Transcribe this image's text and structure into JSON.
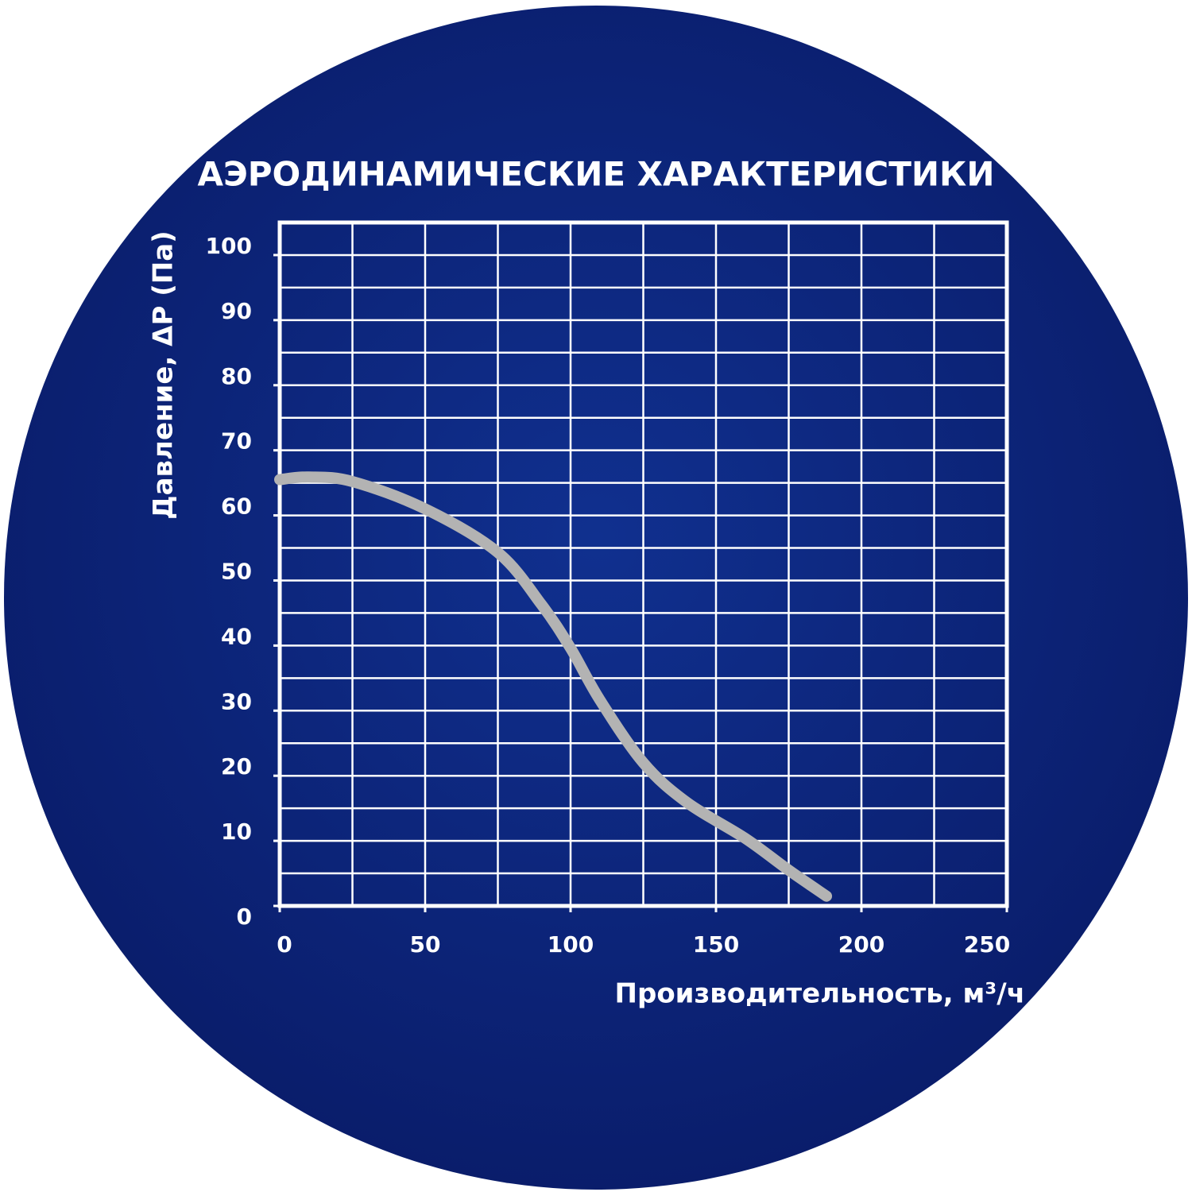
{
  "chart_data": {
    "type": "line",
    "title": "АЭРОДИНАМИЧЕСКИЕ ХАРАКТЕРИСТИКИ",
    "x_label": "Производительность, м³/ч",
    "y_label": "Давление, ΔP (Па)",
    "x": [
      0,
      10,
      25,
      50,
      75,
      90,
      100,
      110,
      125,
      140,
      160,
      175,
      188
    ],
    "series": [
      {
        "name": "ΔP",
        "color": "#b3b3b3",
        "values": [
          65.5,
          65.9,
          65.2,
          61,
          54.3,
          46.3,
          39.6,
          31.7,
          22,
          15.9,
          10.4,
          5.5,
          1.5
        ]
      }
    ],
    "xlim": [
      0,
      250
    ],
    "ylim": [
      0,
      105
    ],
    "xticks": [
      0,
      50,
      100,
      150,
      200,
      250
    ],
    "yticks": [
      0,
      10,
      20,
      30,
      40,
      50,
      60,
      70,
      80,
      90,
      100
    ],
    "xgrid": [
      25,
      50,
      75,
      100,
      125,
      150,
      175,
      200,
      225
    ],
    "ygrid": [
      5,
      10,
      15,
      20,
      25,
      30,
      35,
      40,
      45,
      50,
      55,
      60,
      65,
      70,
      75,
      80,
      85,
      90,
      95,
      100
    ],
    "grid": true
  }
}
